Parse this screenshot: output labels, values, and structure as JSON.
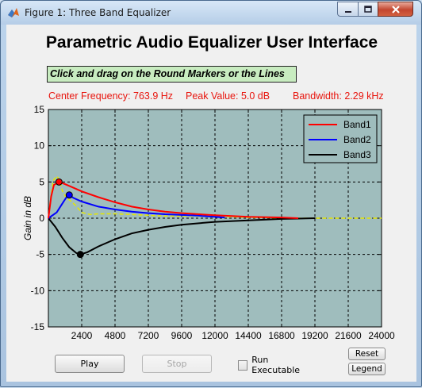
{
  "window": {
    "title": "Figure 1: Three Band Equalizer"
  },
  "header": {
    "title": "Parametric Audio Equalizer User Interface",
    "instruction": "Click and drag on the Round Markers or the Lines"
  },
  "readout": {
    "center_frequency": "Center Frequency: 763.9 Hz",
    "peak_value": "Peak Value: 5.0 dB",
    "bandwidth": "Bandwidth: 2.29 kHz"
  },
  "controls": {
    "play_label": "Play",
    "stop_label": "Stop",
    "run_executable_label": "Run Executable",
    "run_executable_checked": false,
    "reset_label": "Reset",
    "legend_label": "Legend"
  },
  "colors": {
    "plot_bg": "#9fbdbd",
    "band1": "#ff0000",
    "band2": "#0000ff",
    "band3": "#000000",
    "combined": "#e6e600",
    "readout_text": "#e8150e"
  },
  "chart_data": {
    "type": "line",
    "xlabel": "",
    "ylabel": "Gain in dB",
    "xlim": [
      0,
      24000
    ],
    "ylim": [
      -15,
      15
    ],
    "x_ticks": [
      2400,
      4800,
      7200,
      9600,
      12000,
      14400,
      16800,
      19200,
      21600,
      24000
    ],
    "y_ticks": [
      -15,
      -10,
      -5,
      0,
      5,
      10,
      15
    ],
    "grid": true,
    "legend_position": "top-right",
    "series": [
      {
        "name": "Band1",
        "color": "#ff0000",
        "marker": {
          "x": 764,
          "y": 5.0
        },
        "x": [
          0,
          200,
          400,
          764,
          1200,
          1800,
          2400,
          3600,
          4800,
          6000,
          7200,
          8400,
          9600,
          12000,
          14400,
          16800,
          18000
        ],
        "y": [
          0,
          3.0,
          4.6,
          5.0,
          4.7,
          4.2,
          3.7,
          2.9,
          2.2,
          1.6,
          1.2,
          0.9,
          0.7,
          0.4,
          0.2,
          0.1,
          0.0
        ]
      },
      {
        "name": "Band2",
        "color": "#0000ff",
        "marker": {
          "x": 1500,
          "y": 3.2
        },
        "x": [
          0,
          600,
          1000,
          1300,
          1500,
          1800,
          2400,
          3600,
          4800,
          6000,
          7200,
          8400,
          9600,
          10800,
          12000,
          12700
        ],
        "y": [
          0,
          0.8,
          2.0,
          2.9,
          3.2,
          2.8,
          2.3,
          1.6,
          1.2,
          0.9,
          0.7,
          0.55,
          0.45,
          0.35,
          0.2,
          0.1
        ]
      },
      {
        "name": "Band3",
        "color": "#000000",
        "marker": {
          "x": 2300,
          "y": -5.0
        },
        "x": [
          0,
          500,
          1000,
          1500,
          2000,
          2300,
          2800,
          3600,
          4800,
          6000,
          7200,
          8400,
          9600,
          12000,
          14400,
          16800,
          19200
        ],
        "y": [
          0,
          -1.2,
          -2.7,
          -4.0,
          -4.8,
          -5.0,
          -4.7,
          -3.9,
          -2.9,
          -2.1,
          -1.6,
          -1.2,
          -0.9,
          -0.5,
          -0.3,
          -0.1,
          0.0
        ]
      },
      {
        "name": "",
        "color": "#e6e600",
        "x": [
          0,
          150,
          350,
          600,
          800,
          1000,
          1300,
          1600,
          2000,
          2400,
          3000,
          3600,
          4800,
          6000,
          7200,
          8400,
          9600,
          10800,
          12000,
          13200,
          14400,
          15600,
          16800,
          19200,
          21600,
          24000
        ],
        "y": [
          0,
          2.5,
          5.2,
          5.8,
          5.3,
          3.8,
          2.8,
          2.4,
          1.7,
          0.8,
          0.5,
          0.6,
          0.6,
          0.5,
          0.4,
          0.3,
          0.3,
          0.3,
          0.2,
          0.2,
          0.1,
          0.1,
          0.0,
          0.0,
          0.0,
          0.0
        ]
      }
    ]
  }
}
